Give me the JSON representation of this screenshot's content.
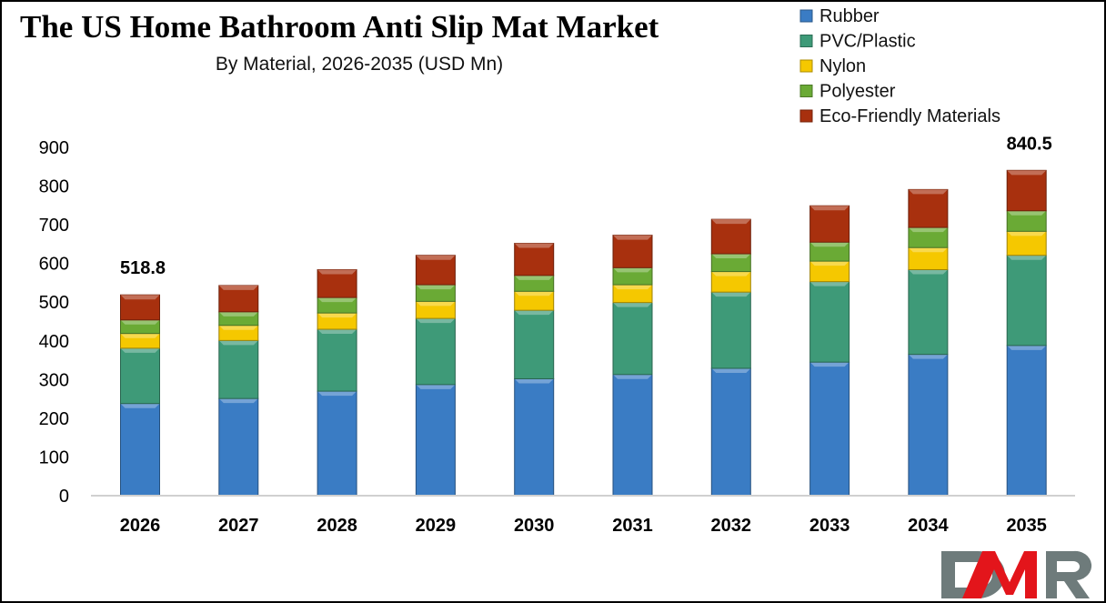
{
  "chart_data": {
    "type": "bar",
    "stacked": true,
    "title": "The US Home Bathroom Anti Slip Mat Market",
    "subtitle": "By Material, 2026-2035 (USD Mn)",
    "categories": [
      "2026",
      "2027",
      "2028",
      "2029",
      "2030",
      "2031",
      "2032",
      "2033",
      "2034",
      "2035"
    ],
    "series": [
      {
        "name": "Rubber",
        "color": "#3a7cc4",
        "values": [
          238,
          251,
          270,
          287,
          302,
          313,
          329,
          345,
          365,
          388
        ]
      },
      {
        "name": "PVC/Plastic",
        "color": "#3e9a78",
        "values": [
          143,
          150,
          160,
          171,
          177,
          186,
          197,
          208,
          219,
          233
        ]
      },
      {
        "name": "Nylon",
        "color": "#f5c800",
        "values": [
          38,
          39,
          42,
          44,
          49,
          46,
          53,
          53,
          57,
          62
        ]
      },
      {
        "name": "Polyester",
        "color": "#6aaa35",
        "values": [
          35,
          35,
          40,
          43,
          41,
          44,
          46,
          49,
          52,
          53
        ]
      },
      {
        "name": "Eco-Friendly Materials",
        "color": "#a8300e",
        "values": [
          64.8,
          68,
          72,
          76,
          83,
          84,
          89,
          94,
          98,
          104.5
        ]
      }
    ],
    "data_labels": [
      {
        "category": "2026",
        "text": "518.8"
      },
      {
        "category": "2035",
        "text": "840.5"
      }
    ],
    "ylim": [
      0,
      900
    ],
    "yticks": [
      0,
      100,
      200,
      300,
      400,
      500,
      600,
      700,
      800,
      900
    ],
    "xlabel": "",
    "ylabel": "",
    "grid": false,
    "legend_position": "top-right"
  },
  "logo": {
    "text": "DMR",
    "colors": {
      "D": "#6e7b7b",
      "M": "#e3151b",
      "R": "#6e7b7b"
    }
  }
}
